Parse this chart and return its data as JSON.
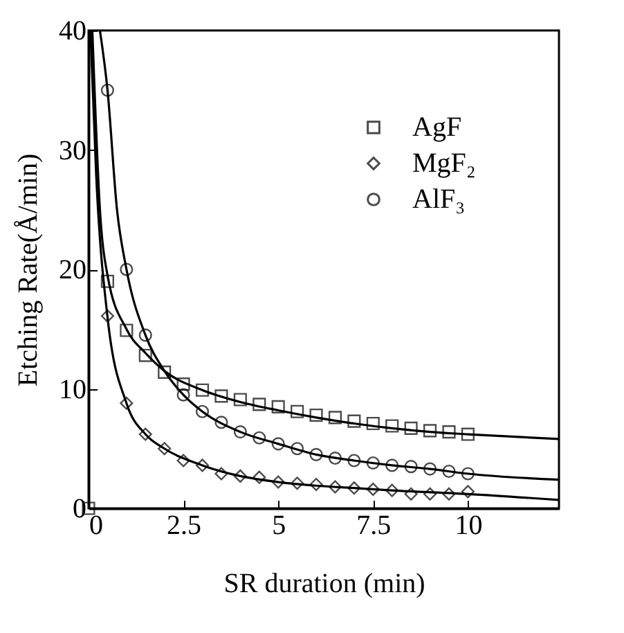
{
  "chart_data": {
    "type": "scatter",
    "xlabel": "SR duration  (min)",
    "ylabel": "Etching Rate(Å/min)",
    "xlim": [
      0,
      12.4
    ],
    "ylim": [
      0,
      40
    ],
    "xticks": [
      0,
      2.5,
      5,
      7.5,
      10
    ],
    "yticks": [
      0,
      10,
      20,
      30,
      40
    ],
    "grid": false,
    "legend": "top right",
    "series": [
      {
        "name": "AgF",
        "marker": "square",
        "color": "#000000",
        "x": [
          0,
          0.5,
          1,
          1.5,
          2,
          2.5,
          3,
          3.5,
          4,
          4.5,
          5,
          5.5,
          6,
          6.5,
          7,
          7.5,
          8,
          8.5,
          9,
          9.5,
          10
        ],
        "values": [
          0,
          19.0,
          14.9,
          12.8,
          11.4,
          10.4,
          9.9,
          9.4,
          9.1,
          8.7,
          8.5,
          8.1,
          7.8,
          7.6,
          7.3,
          7.1,
          6.9,
          6.7,
          6.5,
          6.4,
          6.2
        ]
      },
      {
        "name": "MgF₂",
        "marker": "diamond",
        "color": "#000000",
        "x": [
          0.5,
          1,
          1.5,
          2,
          2.5,
          3,
          3.5,
          4,
          4.5,
          5,
          5.5,
          6,
          6.5,
          7,
          7.5,
          8,
          8.5,
          9,
          9.5,
          10
        ],
        "values": [
          16.1,
          8.8,
          6.2,
          5.0,
          4.0,
          3.6,
          2.9,
          2.7,
          2.6,
          2.2,
          2.1,
          2.0,
          1.8,
          1.7,
          1.6,
          1.5,
          1.2,
          1.2,
          1.2,
          1.4
        ]
      },
      {
        "name": "AlF₃",
        "marker": "circle",
        "color": "#000000",
        "x": [
          0.5,
          1,
          1.5,
          2.5,
          3,
          3.5,
          4,
          4.5,
          5,
          5.5,
          6,
          6.5,
          7,
          7.5,
          8,
          8.5,
          9,
          9.5,
          10
        ],
        "values": [
          35,
          20,
          14.5,
          9.5,
          8.1,
          7.2,
          6.4,
          5.9,
          5.4,
          5.0,
          4.5,
          4.2,
          4.0,
          3.8,
          3.6,
          3.5,
          3.3,
          3.1,
          2.9
        ]
      },
      {
        "type": "line",
        "line_style": "solid",
        "color": "#000000",
        "x": [
          0.1,
          0.3,
          0.5,
          1,
          1.5,
          2,
          3,
          4,
          5,
          6,
          7,
          8,
          9,
          10,
          12.4
        ],
        "values": [
          40,
          25,
          19.5,
          15,
          13,
          11.5,
          9.9,
          8.9,
          8.2,
          7.6,
          7.1,
          6.7,
          6.4,
          6.2,
          5.8
        ]
      },
      {
        "type": "line",
        "line_style": "solid",
        "color": "#000000",
        "x": [
          0.05,
          0.2,
          0.5,
          1,
          1.5,
          2,
          3,
          4,
          5,
          6,
          7,
          8,
          10,
          12.4
        ],
        "values": [
          40,
          28,
          16,
          8.8,
          6.2,
          5.0,
          3.6,
          2.7,
          2.2,
          1.9,
          1.7,
          1.5,
          1.2,
          0.7
        ]
      },
      {
        "type": "line",
        "line_style": "solid",
        "color": "#000000",
        "x": [
          0.3,
          0.5,
          0.75,
          1,
          1.5,
          2,
          2.5,
          3,
          4,
          5,
          6,
          7,
          8,
          9,
          10,
          12.4
        ],
        "values": [
          40,
          35,
          25,
          20,
          14.5,
          11.5,
          9.5,
          8.1,
          6.4,
          5.4,
          4.5,
          4.0,
          3.6,
          3.3,
          2.9,
          2.4
        ]
      }
    ]
  }
}
